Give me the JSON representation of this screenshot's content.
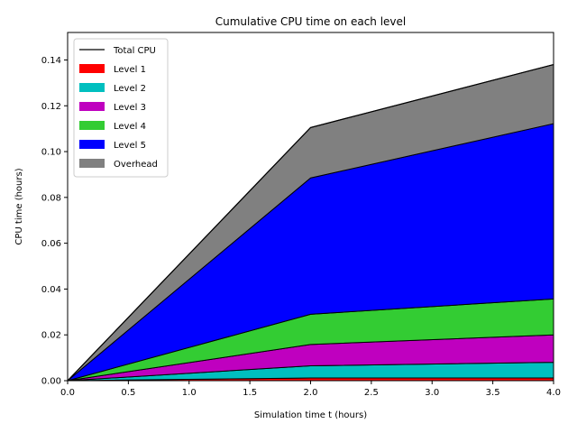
{
  "chart_data": {
    "type": "area",
    "title": "Cumulative CPU time on each level",
    "xlabel": "Simulation time t (hours)",
    "ylabel": "CPU time (hours)",
    "xlim": [
      0.0,
      4.0
    ],
    "ylim": [
      0.0,
      0.152
    ],
    "xticks": [
      "0.0",
      "0.5",
      "1.0",
      "1.5",
      "2.0",
      "2.5",
      "3.0",
      "3.5",
      "4.0"
    ],
    "yticks": [
      "0.00",
      "0.02",
      "0.04",
      "0.06",
      "0.08",
      "0.10",
      "0.12",
      "0.14"
    ],
    "x": [
      0.0,
      2.0,
      4.0
    ],
    "stacked": true,
    "grid": false,
    "legend_position": "upper-left",
    "total_line": {
      "name": "Total CPU",
      "color": "#000000",
      "values": [
        0.0,
        0.1105,
        0.138
      ]
    },
    "series": [
      {
        "name": "Level 1",
        "color": "#ff0000",
        "values": [
          0.0,
          0.0012,
          0.0012
        ]
      },
      {
        "name": "Level 2",
        "color": "#00bfbf",
        "values": [
          0.0,
          0.0053,
          0.0068
        ]
      },
      {
        "name": "Level 3",
        "color": "#bf00bf",
        "values": [
          0.0,
          0.0093,
          0.012
        ]
      },
      {
        "name": "Level 4",
        "color": "#33cc33",
        "values": [
          0.0,
          0.0132,
          0.0157
        ]
      },
      {
        "name": "Level 5",
        "color": "#0000ff",
        "values": [
          0.0,
          0.0595,
          0.0765
        ]
      },
      {
        "name": "Overhead",
        "color": "#808080",
        "values": [
          0.0,
          0.022,
          0.0258
        ]
      }
    ]
  }
}
